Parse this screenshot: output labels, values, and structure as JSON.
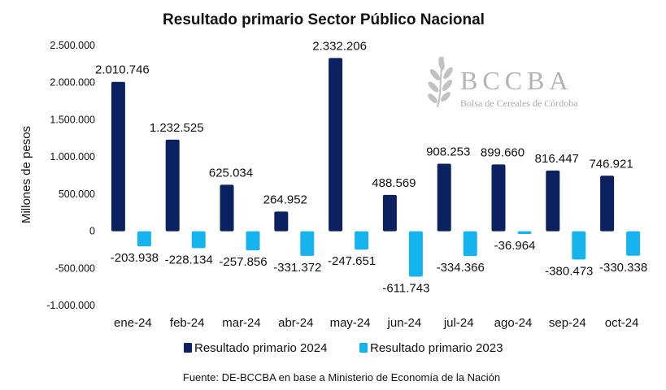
{
  "chart_data": {
    "type": "bar",
    "title": "Resultado primario Sector Público Nacional",
    "ylabel": "Millones de pesos",
    "xlabel": "",
    "categories": [
      "ene-24",
      "feb-24",
      "mar-24",
      "abr-24",
      "may-24",
      "jun-24",
      "jul-24",
      "ago-24",
      "sep-24",
      "oct-24"
    ],
    "series": [
      {
        "name": "Resultado primario 2024",
        "color": "#0b2160",
        "values": [
          2010746,
          1232525,
          625034,
          264952,
          2332206,
          488569,
          908253,
          899660,
          816447,
          746921
        ],
        "labels": [
          "2.010.746",
          "1.232.525",
          "625.034",
          "264.952",
          "2.332.206",
          "488.569",
          "908.253",
          "899.660",
          "816.447",
          "746.921"
        ]
      },
      {
        "name": "Resultado primario 2023",
        "color": "#16b4ee",
        "values": [
          -203938,
          -228134,
          -257856,
          -331372,
          -247651,
          -611743,
          -334366,
          -36964,
          -380473,
          -330338
        ],
        "labels": [
          "-203.938",
          "-228.134",
          "-257.856",
          "-331.372",
          "-247.651",
          "-611.743",
          "-334.366",
          "-36.964",
          "-380.473",
          "-330.338"
        ]
      }
    ],
    "ylim": [
      -1000000,
      2500000
    ],
    "yticks": [
      {
        "value": 2500000,
        "label": "2.500.000"
      },
      {
        "value": 2000000,
        "label": "2.000.000"
      },
      {
        "value": 1500000,
        "label": "1.500.000"
      },
      {
        "value": 1000000,
        "label": "1.000.000"
      },
      {
        "value": 500000,
        "label": "500.000"
      },
      {
        "value": 0,
        "label": "0"
      },
      {
        "value": -500000,
        "label": "-500.000"
      },
      {
        "value": -1000000,
        "label": "-1.000.000"
      }
    ],
    "grid": false,
    "legend_position": "bottom",
    "source": "Fuente: DE-BCCBA en base a Ministerio de Economía de la Nación"
  },
  "logo": {
    "acronym": "BCCBA",
    "name": "Bolsa de Cereales de Córdoba",
    "icon": "wheat-icon"
  }
}
